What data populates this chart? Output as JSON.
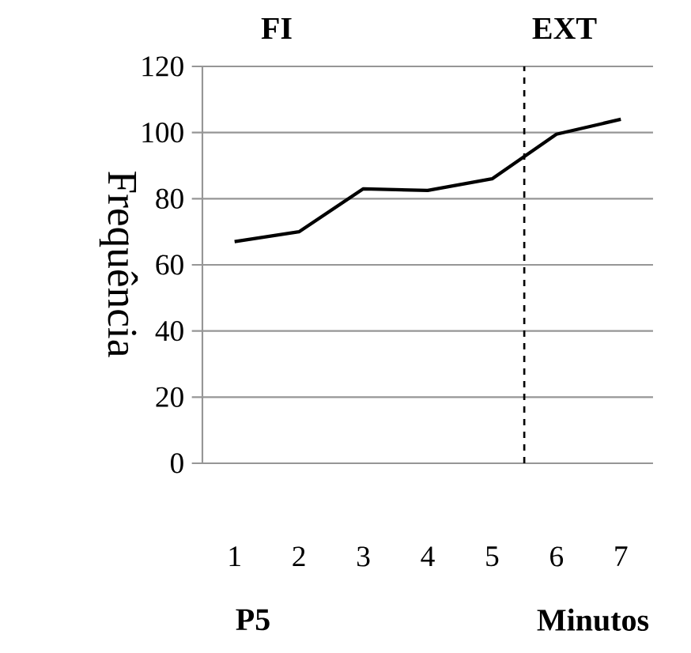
{
  "chart_data": {
    "type": "line",
    "xlabel": "Minutos",
    "ylabel": "Frequência",
    "x": [
      1,
      2,
      3,
      4,
      5,
      6,
      7
    ],
    "values": [
      67,
      70,
      83,
      82.5,
      86,
      99.5,
      104
    ],
    "color": "#000000",
    "xlim": [
      0.5,
      7.5
    ],
    "ylim": [
      0,
      120
    ],
    "xticks": [
      1,
      2,
      3,
      4,
      5,
      6,
      7
    ],
    "yticks": [
      0,
      20,
      40,
      60,
      80,
      100,
      120
    ],
    "grid": "y",
    "ref_lines": [
      {
        "axis": "x",
        "value": 5.5,
        "color": "#000000",
        "line_style": "dashed"
      }
    ],
    "annotations": [
      "FI",
      "EXT",
      "P5"
    ]
  }
}
